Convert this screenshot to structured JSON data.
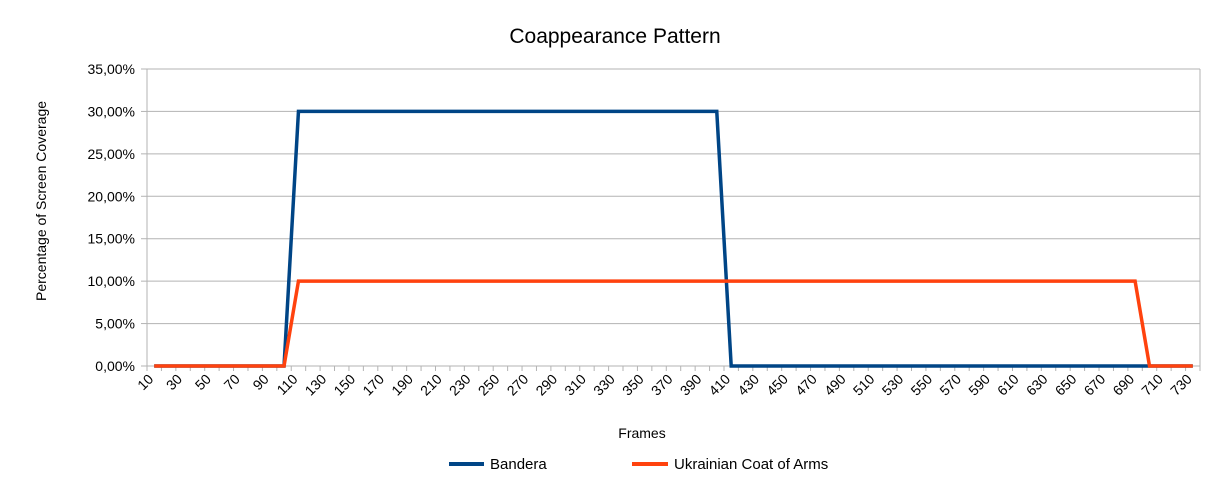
{
  "chart_data": {
    "type": "line",
    "title": "Coappearance Pattern",
    "xlabel": "Frames",
    "ylabel": "Percentage of Screen Coverage",
    "ylim": [
      0,
      0.35
    ],
    "y_ticks": [
      "0,00%",
      "5,00%",
      "10,00%",
      "15,00%",
      "20,00%",
      "25,00%",
      "30,00%",
      "35,00%"
    ],
    "y_tick_values": [
      0,
      0.05,
      0.1,
      0.15,
      0.2,
      0.25,
      0.3,
      0.35
    ],
    "x_start": 10,
    "x_end": 730,
    "x_step": 10,
    "x_tick_labels": [
      "10",
      "30",
      "50",
      "70",
      "90",
      "110",
      "130",
      "150",
      "170",
      "190",
      "210",
      "230",
      "250",
      "270",
      "290",
      "310",
      "330",
      "350",
      "370",
      "390",
      "410",
      "430",
      "450",
      "470",
      "490",
      "510",
      "530",
      "550",
      "570",
      "590",
      "610",
      "630",
      "650",
      "670",
      "690",
      "710",
      "730"
    ],
    "grid": true,
    "legend_position": "bottom",
    "series": [
      {
        "name": "Bandera",
        "color": "#004586",
        "points": [
          [
            10,
            0
          ],
          [
            100,
            0
          ],
          [
            110,
            0.3
          ],
          [
            400,
            0.3
          ],
          [
            410,
            0
          ],
          [
            730,
            0
          ]
        ]
      },
      {
        "name": "Ukrainian Coat of Arms",
        "color": "#ff420e",
        "points": [
          [
            10,
            0
          ],
          [
            100,
            0
          ],
          [
            110,
            0.1
          ],
          [
            690,
            0.1
          ],
          [
            700,
            0
          ],
          [
            730,
            0
          ]
        ]
      }
    ]
  }
}
